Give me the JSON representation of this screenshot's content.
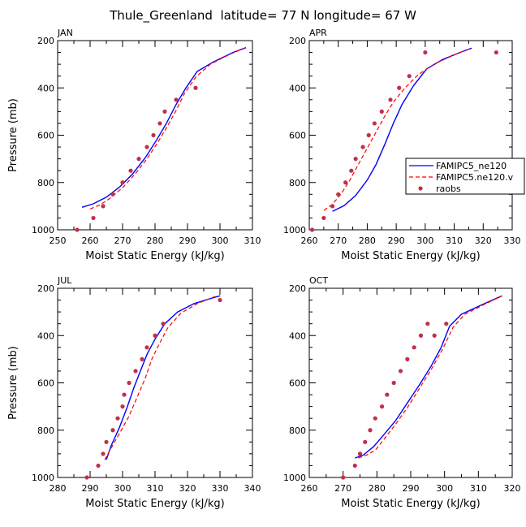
{
  "figure_title": "Thule_Greenland  latitude= 77 N longitude= 67 W",
  "legend": {
    "entries": [
      {
        "label": "FAMIPC5_ne120",
        "style": "solid",
        "color": "#0000ff"
      },
      {
        "label": "FAMIPC5.ne120.v",
        "style": "dashed",
        "color": "#ff0000"
      },
      {
        "label": "raobs",
        "style": "marker",
        "color": "#c0304a"
      }
    ]
  },
  "chart_data": [
    {
      "type": "line",
      "panel_label": "JAN",
      "xlabel": "Moist Static Energy (kJ/kg)",
      "ylabel": "Pressure (mb)",
      "xlim": [
        250,
        310
      ],
      "ylim": [
        1000,
        200
      ],
      "xticks": [
        "250",
        "260",
        "270",
        "280",
        "290",
        "300",
        "310"
      ],
      "yticks": [
        "200",
        "400",
        "600",
        "800",
        "1000"
      ],
      "series": [
        {
          "name": "FAMIPC5_ne120",
          "points": [
            [
              257.5,
              905
            ],
            [
              261,
              890
            ],
            [
              265,
              862
            ],
            [
              269,
              820
            ],
            [
              273,
              765
            ],
            [
              277,
              695
            ],
            [
              280.5,
              620
            ],
            [
              283.5,
              550
            ],
            [
              286.5,
              470
            ],
            [
              289.5,
              400
            ],
            [
              293,
              330
            ],
            [
              298,
              290
            ],
            [
              304,
              250
            ],
            [
              308,
              230
            ]
          ]
        },
        {
          "name": "FAMIPC5.ne120.v",
          "points": [
            [
              260,
              912
            ],
            [
              263,
              895
            ],
            [
              266,
              868
            ],
            [
              270,
              822
            ],
            [
              274,
              762
            ],
            [
              277.5,
              700
            ],
            [
              281,
              627
            ],
            [
              284,
              557
            ],
            [
              286.5,
              495
            ],
            [
              289,
              425
            ],
            [
              292.5,
              355
            ],
            [
              297,
              300
            ],
            [
              303,
              258
            ],
            [
              307.5,
              232
            ]
          ]
        },
        {
          "name": "raobs",
          "points": [
            [
              256,
              1000
            ],
            [
              261,
              950
            ],
            [
              264,
              900
            ],
            [
              267,
              850
            ],
            [
              270,
              800
            ],
            [
              272.5,
              750
            ],
            [
              275,
              700
            ],
            [
              277.5,
              650
            ],
            [
              279.5,
              600
            ],
            [
              281.5,
              550
            ],
            [
              283,
              500
            ],
            [
              286.5,
              450
            ],
            [
              292.5,
              400
            ]
          ]
        }
      ]
    },
    {
      "type": "line",
      "panel_label": "APR",
      "xlabel": "Moist Static Energy (kJ/kg)",
      "ylabel": "",
      "xlim": [
        260,
        330
      ],
      "ylim": [
        1000,
        200
      ],
      "xticks": [
        "260",
        "270",
        "280",
        "290",
        "300",
        "310",
        "320",
        "330"
      ],
      "yticks": [
        "200",
        "400",
        "600",
        "800",
        "1000"
      ],
      "series": [
        {
          "name": "FAMIPC5_ne120",
          "points": [
            [
              268,
              922
            ],
            [
              272,
              898
            ],
            [
              276,
              855
            ],
            [
              280,
              790
            ],
            [
              283,
              725
            ],
            [
              286,
              640
            ],
            [
              289,
              550
            ],
            [
              292,
              470
            ],
            [
              296,
              390
            ],
            [
              300.5,
              320
            ],
            [
              306,
              280
            ],
            [
              312,
              250
            ],
            [
              316,
              232
            ]
          ]
        },
        {
          "name": "FAMIPC5.ne120.v",
          "points": [
            [
              265,
              918
            ],
            [
              268,
              892
            ],
            [
              271,
              848
            ],
            [
              274,
              790
            ],
            [
              277,
              722
            ],
            [
              280,
              655
            ],
            [
              283,
              588
            ],
            [
              286,
              520
            ],
            [
              289,
              460
            ],
            [
              293,
              400
            ],
            [
              297.5,
              345
            ],
            [
              303,
              300
            ],
            [
              310,
              260
            ],
            [
              316,
              232
            ]
          ]
        },
        {
          "name": "raobs",
          "points": [
            [
              261,
              1000
            ],
            [
              265,
              950
            ],
            [
              268,
              900
            ],
            [
              270,
              850
            ],
            [
              272.5,
              800
            ],
            [
              274.5,
              750
            ],
            [
              276,
              700
            ],
            [
              278.5,
              650
            ],
            [
              280.5,
              600
            ],
            [
              282.5,
              550
            ],
            [
              285,
              500
            ],
            [
              288,
              450
            ],
            [
              291,
              400
            ],
            [
              294.5,
              350
            ],
            [
              300,
              250
            ],
            [
              324.5,
              250
            ]
          ]
        }
      ]
    },
    {
      "type": "line",
      "panel_label": "JUL",
      "xlabel": "Moist Static Energy (kJ/kg)",
      "ylabel": "Pressure (mb)",
      "xlim": [
        280,
        340
      ],
      "ylim": [
        1000,
        200
      ],
      "xticks": [
        "280",
        "290",
        "300",
        "310",
        "320",
        "330",
        "340"
      ],
      "yticks": [
        "200",
        "400",
        "600",
        "800",
        "1000"
      ],
      "series": [
        {
          "name": "FAMIPC5_ne120",
          "points": [
            [
              295,
              925
            ],
            [
              296.5,
              865
            ],
            [
              299,
              790
            ],
            [
              301.5,
              700
            ],
            [
              303.5,
              620
            ],
            [
              305.5,
              550
            ],
            [
              307.5,
              480
            ],
            [
              310,
              415
            ],
            [
              313,
              350
            ],
            [
              317,
              300
            ],
            [
              322,
              265
            ],
            [
              328,
              240
            ],
            [
              330,
              232
            ]
          ]
        },
        {
          "name": "FAMIPC5.ne120.v",
          "points": [
            [
              294.5,
              925
            ],
            [
              296.5,
              875
            ],
            [
              299,
              815
            ],
            [
              302,
              740
            ],
            [
              304.5,
              660
            ],
            [
              307,
              580
            ],
            [
              309,
              500
            ],
            [
              311.5,
              430
            ],
            [
              314,
              365
            ],
            [
              318,
              305
            ],
            [
              323,
              265
            ],
            [
              328.5,
              235
            ]
          ]
        },
        {
          "name": "raobs",
          "points": [
            [
              289,
              1000
            ],
            [
              292.5,
              950
            ],
            [
              294,
              900
            ],
            [
              295,
              850
            ],
            [
              297,
              800
            ],
            [
              298.5,
              750
            ],
            [
              300,
              700
            ],
            [
              300.5,
              650
            ],
            [
              302,
              600
            ],
            [
              304,
              550
            ],
            [
              306,
              500
            ],
            [
              307.5,
              450
            ],
            [
              310,
              400
            ],
            [
              312.5,
              350
            ],
            [
              330,
              250
            ]
          ]
        }
      ]
    },
    {
      "type": "line",
      "panel_label": "OCT",
      "xlabel": "Moist Static Energy (kJ/kg)",
      "ylabel": "",
      "xlim": [
        260,
        320
      ],
      "ylim": [
        1000,
        200
      ],
      "xticks": [
        "260",
        "270",
        "280",
        "290",
        "300",
        "310",
        "320"
      ],
      "yticks": [
        "200",
        "400",
        "600",
        "800",
        "1000"
      ],
      "series": [
        {
          "name": "FAMIPC5_ne120",
          "points": [
            [
              273.5,
              918
            ],
            [
              276,
              905
            ],
            [
              279,
              870
            ],
            [
              282,
              820
            ],
            [
              285.5,
              760
            ],
            [
              289,
              685
            ],
            [
              292.5,
              610
            ],
            [
              296,
              530
            ],
            [
              299,
              450
            ],
            [
              301.5,
              360
            ],
            [
              305,
              310
            ],
            [
              311,
              270
            ],
            [
              317,
              232
            ]
          ]
        },
        {
          "name": "FAMIPC5.ne120.v",
          "points": [
            [
              274.5,
              918
            ],
            [
              277,
              905
            ],
            [
              279.5,
              885
            ],
            [
              282,
              840
            ],
            [
              285.5,
              775
            ],
            [
              289,
              705
            ],
            [
              292.5,
              625
            ],
            [
              296,
              545
            ],
            [
              299.5,
              455
            ],
            [
              302.5,
              365
            ],
            [
              306,
              310
            ],
            [
              311.5,
              270
            ],
            [
              317,
              232
            ]
          ]
        },
        {
          "name": "raobs",
          "points": [
            [
              270,
              1000
            ],
            [
              273.5,
              950
            ],
            [
              275,
              900
            ],
            [
              276.5,
              850
            ],
            [
              278,
              800
            ],
            [
              279.5,
              750
            ],
            [
              281.5,
              700
            ],
            [
              283,
              650
            ],
            [
              285,
              600
            ],
            [
              287,
              550
            ],
            [
              289,
              500
            ],
            [
              291,
              450
            ],
            [
              293,
              400
            ],
            [
              295,
              350
            ],
            [
              297,
              400
            ],
            [
              300.5,
              350
            ]
          ]
        }
      ]
    }
  ]
}
